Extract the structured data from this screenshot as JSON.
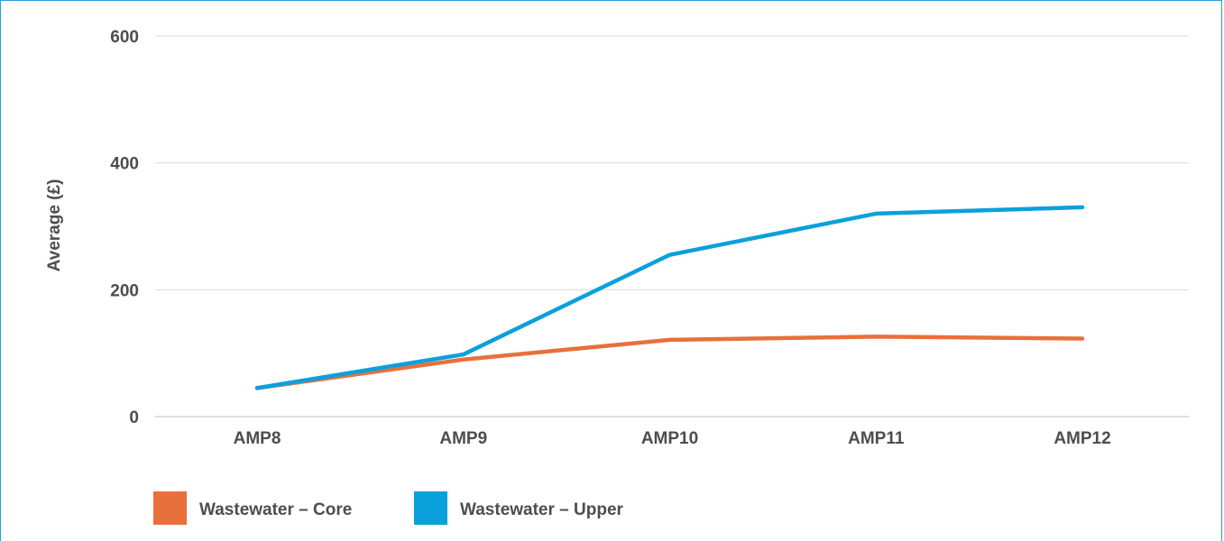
{
  "chart_data": {
    "type": "line",
    "title": "",
    "xlabel": "",
    "ylabel": "Average (£)",
    "categories": [
      "AMP8",
      "AMP9",
      "AMP10",
      "AMP11",
      "AMP12"
    ],
    "ylim": [
      0,
      600
    ],
    "yticks": [
      0,
      200,
      400,
      600
    ],
    "grid": true,
    "legend_position": "bottom-left",
    "series": [
      {
        "name": "Wastewater – Core",
        "color": "#e8703a",
        "values": [
          45,
          90,
          121,
          126,
          123
        ]
      },
      {
        "name": "Wastewater – Upper",
        "color": "#0aa0dc",
        "values": [
          45,
          98,
          255,
          320,
          330
        ]
      }
    ]
  }
}
